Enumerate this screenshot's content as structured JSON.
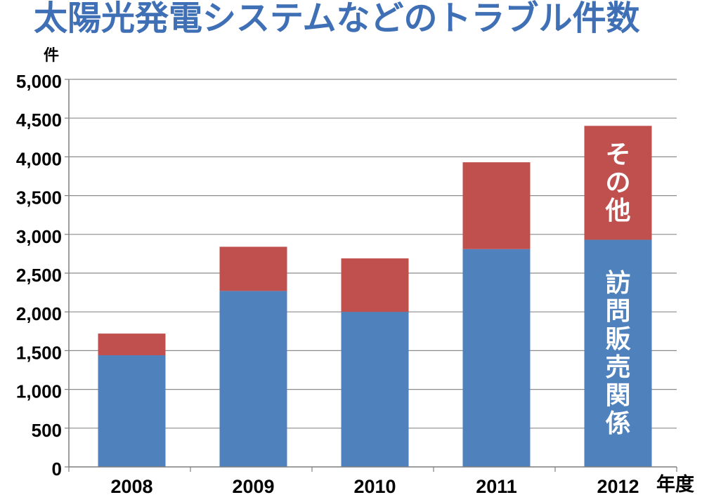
{
  "chart_data": {
    "type": "bar",
    "stacked": true,
    "title": "太陽光発電システムなどのトラブル件数",
    "title_color": "#3f6fb5",
    "ylabel": "件",
    "xlabel": "年度",
    "categories": [
      "2008",
      "2009",
      "2010",
      "2011",
      "2012"
    ],
    "series": [
      {
        "name": "訪問販売関係",
        "color": "#4f81bd",
        "values": [
          1440,
          2270,
          2000,
          2810,
          2930
        ]
      },
      {
        "name": "その他",
        "color": "#c0504d",
        "values": [
          280,
          570,
          690,
          1120,
          1470
        ]
      }
    ],
    "ylim": [
      0,
      5000
    ],
    "yticks": [
      0,
      500,
      1000,
      1500,
      2000,
      2500,
      3000,
      3500,
      4000,
      4500,
      5000
    ],
    "ytick_labels": [
      "0",
      "500",
      "1,000",
      "1,500",
      "2,000",
      "2,500",
      "3,000",
      "3,500",
      "4,000",
      "4,500",
      "5,000"
    ],
    "grid": true,
    "legend": "inside-last-bar"
  }
}
